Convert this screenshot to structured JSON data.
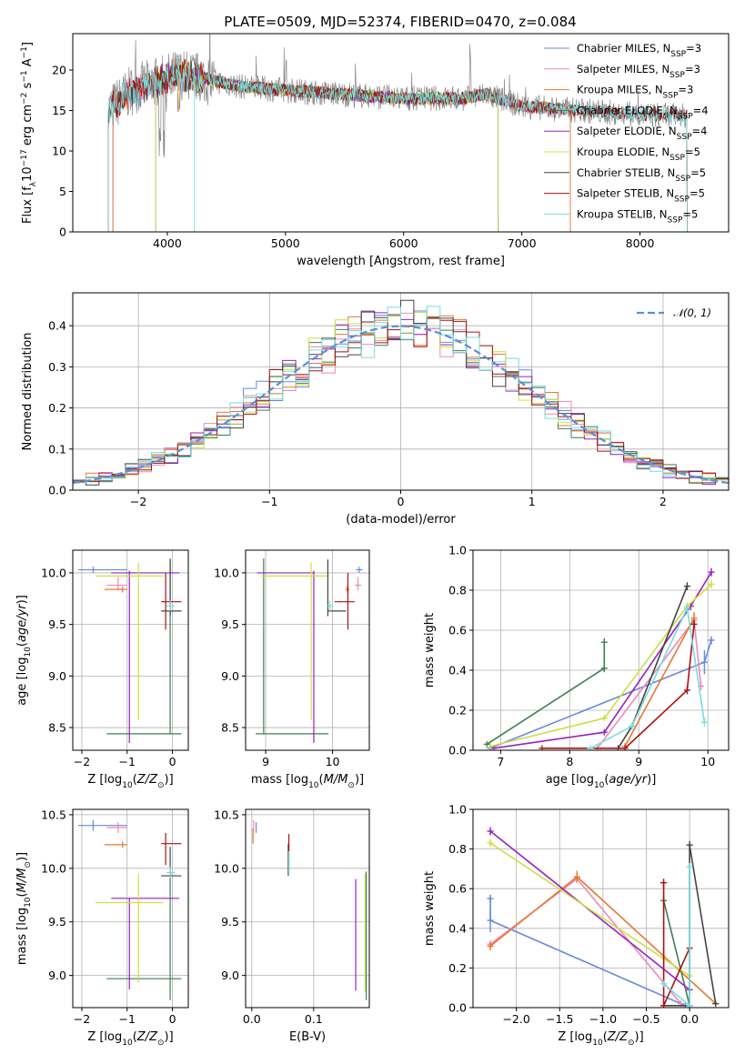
{
  "figure": {
    "title": "PLATE=0509, MJD=52374, FIBERID=0470, z=0.084"
  },
  "colors": {
    "Chabrier MILES": "#6688dd",
    "Salpeter MILES": "#ee88bb",
    "Kroupa MILES": "#e87830",
    "Chabrier ELODIE": "#3d7f55",
    "Salpeter ELODIE": "#9922bb",
    "Kroupa ELODIE": "#cce044",
    "Chabrier STELIB": "#444444",
    "Salpeter STELIB": "#aa1111",
    "Kroupa STELIB": "#77dddd",
    "observed": "#888888",
    "normal": "#5b8fd6",
    "grid": "#b0b0b0"
  },
  "chart_data": [
    {
      "id": "spectrum",
      "type": "line",
      "title": "PLATE=0509, MJD=52374, FIBERID=0470, z=0.084",
      "xlabel": "wavelength [Angstrom, rest frame]",
      "ylabel": "Flux [f_λ10^-17 erg cm^-2 s^-1 A^-1]",
      "xlim": [
        3200,
        8750
      ],
      "ylim": [
        0,
        24.5
      ],
      "xticks": [
        4000,
        5000,
        6000,
        7000,
        8000
      ],
      "yticks": [
        0,
        5,
        10,
        15,
        20
      ],
      "grid": false,
      "legend_position": "top-right",
      "legend": [
        {
          "name": "Chabrier MILES",
          "nssp": "3"
        },
        {
          "name": "Salpeter MILES",
          "nssp": "3"
        },
        {
          "name": "Kroupa MILES",
          "nssp": "3"
        },
        {
          "name": "Chabrier ELODIE",
          "nssp": "4"
        },
        {
          "name": "Salpeter ELODIE",
          "nssp": "4"
        },
        {
          "name": "Kroupa ELODIE",
          "nssp": "5"
        },
        {
          "name": "Chabrier STELIB",
          "nssp": "5"
        },
        {
          "name": "Salpeter STELIB",
          "nssp": "5"
        },
        {
          "name": "Kroupa STELIB",
          "nssp": "5"
        }
      ],
      "continuum": {
        "x": [
          3500,
          3700,
          3900,
          4100,
          4300,
          4600,
          5000,
          5500,
          6000,
          6500,
          6700,
          7000,
          7500,
          8000,
          8400
        ],
        "y": [
          15.0,
          17.5,
          18.5,
          19.5,
          19.0,
          18.0,
          17.5,
          17.0,
          16.5,
          16.5,
          17.0,
          15.5,
          15.0,
          14.5,
          14.3
        ]
      },
      "model_ranges": {
        "MILES": [
          3540,
          7410
        ],
        "ELODIE": [
          3900,
          6800
        ],
        "STELIB": [
          3500,
          8400
        ]
      }
    },
    {
      "id": "residual_histogram",
      "type": "line",
      "xlabel": "(data-model)/error",
      "ylabel": "Normed distribution",
      "xlim": [
        -2.5,
        2.5
      ],
      "ylim": [
        0,
        0.48
      ],
      "xticks": [
        -2,
        -1,
        0,
        1,
        2
      ],
      "yticks": [
        0.0,
        0.1,
        0.2,
        0.3,
        0.4
      ],
      "grid": true,
      "legend_position": "top-right",
      "reference_curve": {
        "name": "𝒩(0, 1)",
        "mean": 0,
        "sigma": 1
      },
      "bin_width": 0.1,
      "peak": 0.4
    },
    {
      "id": "age_vs_Z",
      "type": "scatter",
      "xlabel": "Z [log10(Z/Z⊙)]",
      "ylabel": "age [log10(age/yr)]",
      "xlim": [
        -2.2,
        0.35
      ],
      "ylim": [
        8.28,
        10.22
      ],
      "xticks": [
        -2,
        -1,
        0
      ],
      "yticks": [
        8.5,
        9.0,
        9.5,
        10.0
      ],
      "grid": true,
      "points": [
        {
          "model": "Chabrier MILES",
          "x": -1.75,
          "y": 10.03,
          "xerr": [
            0.33,
            0.75
          ],
          "yerr": [
            0.03,
            0.03
          ]
        },
        {
          "model": "Salpeter MILES",
          "x": -1.2,
          "y": 9.88,
          "xerr": [
            0.25,
            0.2
          ],
          "yerr": [
            0.05,
            0.08
          ]
        },
        {
          "model": "Kroupa MILES",
          "x": -1.1,
          "y": 9.84,
          "xerr": [
            0.4,
            0.1
          ],
          "yerr": [
            0.03,
            0.03
          ]
        },
        {
          "model": "Chabrier ELODIE",
          "x": -0.05,
          "y": 8.44,
          "xerr": [
            1.4,
            0.25
          ],
          "yerr": [
            0.0,
            1.7
          ]
        },
        {
          "model": "Salpeter ELODIE",
          "x": -0.95,
          "y": 10.0,
          "xerr": [
            0.4,
            1.1
          ],
          "yerr": [
            1.65,
            0.02
          ]
        },
        {
          "model": "Kroupa ELODIE",
          "x": -0.75,
          "y": 9.97,
          "xerr": [
            0.95,
            0.55
          ],
          "yerr": [
            1.4,
            0.13
          ]
        },
        {
          "model": "Chabrier STELIB",
          "x": -0.05,
          "y": 9.63,
          "xerr": [
            0.2,
            0.25
          ],
          "yerr": [
            0.05,
            0.5
          ]
        },
        {
          "model": "Salpeter STELIB",
          "x": -0.15,
          "y": 9.72,
          "xerr": [
            0.1,
            0.35
          ],
          "yerr": [
            0.27,
            0.28
          ]
        },
        {
          "model": "Kroupa STELIB",
          "x": -0.05,
          "y": 9.68,
          "xerr": [
            0.08,
            0.1
          ],
          "yerr": [
            0.05,
            0.05
          ]
        }
      ]
    },
    {
      "id": "age_vs_mass",
      "type": "scatter",
      "xlabel": "mass [log10(M/M⊙)]",
      "ylabel": "",
      "xlim": [
        8.7,
        10.55
      ],
      "ylim": [
        8.28,
        10.22
      ],
      "xticks": [
        9,
        10
      ],
      "yticks": [
        8.5,
        9.0,
        9.5,
        10.0
      ],
      "grid": true,
      "points": [
        {
          "model": "Chabrier MILES",
          "x": 10.4,
          "y": 10.03,
          "xerr": [
            0.05,
            0.05
          ],
          "yerr": [
            0.03,
            0.03
          ]
        },
        {
          "model": "Salpeter MILES",
          "x": 10.38,
          "y": 9.88,
          "xerr": [
            0.05,
            0.05
          ],
          "yerr": [
            0.05,
            0.08
          ]
        },
        {
          "model": "Kroupa MILES",
          "x": 10.22,
          "y": 9.84,
          "xerr": [
            0.03,
            0.03
          ],
          "yerr": [
            0.03,
            0.03
          ]
        },
        {
          "model": "Chabrier ELODIE",
          "x": 8.97,
          "y": 8.44,
          "xerr": [
            0.12,
            0.97
          ],
          "yerr": [
            0.0,
            1.7
          ]
        },
        {
          "model": "Salpeter ELODIE",
          "x": 9.72,
          "y": 10.0,
          "xerr": [
            0.85,
            0.0
          ],
          "yerr": [
            1.65,
            0.02
          ]
        },
        {
          "model": "Kroupa ELODIE",
          "x": 9.68,
          "y": 9.97,
          "xerr": [
            0.75,
            0.27
          ],
          "yerr": [
            1.4,
            0.13
          ]
        },
        {
          "model": "Chabrier STELIB",
          "x": 9.93,
          "y": 9.63,
          "xerr": [
            0.0,
            0.27
          ],
          "yerr": [
            0.05,
            0.5
          ]
        },
        {
          "model": "Salpeter STELIB",
          "x": 10.23,
          "y": 9.72,
          "xerr": [
            0.2,
            0.1
          ],
          "yerr": [
            0.27,
            0.28
          ]
        },
        {
          "model": "Kroupa STELIB",
          "x": 9.96,
          "y": 9.68,
          "xerr": [
            0.05,
            0.05
          ],
          "yerr": [
            0.05,
            0.05
          ]
        }
      ]
    },
    {
      "id": "mass_weight_vs_age",
      "type": "line",
      "xlabel": "age [log10(age/yr)]",
      "ylabel": "mass weight",
      "xlim": [
        6.6,
        10.3
      ],
      "ylim": [
        0,
        1.0
      ],
      "xticks": [
        7,
        8,
        9,
        10
      ],
      "yticks": [
        0.0,
        0.2,
        0.4,
        0.6,
        0.8,
        1.0
      ],
      "grid": true,
      "series": [
        {
          "model": "Chabrier MILES",
          "x": [
            6.85,
            9.95,
            10.05
          ],
          "y": [
            0.01,
            0.44,
            0.55
          ],
          "err": [
            0.01,
            0.06,
            0.02
          ]
        },
        {
          "model": "Salpeter MILES",
          "x": [
            8.4,
            9.8,
            9.9
          ],
          "y": [
            0.01,
            0.65,
            0.32
          ],
          "err": [
            0.01,
            0.02,
            0.02
          ]
        },
        {
          "model": "Kroupa MILES",
          "x": [
            8.8,
            9.8
          ],
          "y": [
            0.02,
            0.66
          ],
          "err": [
            0.01,
            0.03
          ]
        },
        {
          "model": "Chabrier ELODIE",
          "x": [
            6.8,
            8.5,
            8.5
          ],
          "y": [
            0.03,
            0.41,
            0.54
          ],
          "err": [
            0.01,
            0.02,
            0.02
          ]
        },
        {
          "model": "Salpeter ELODIE",
          "x": [
            6.9,
            8.5,
            9.75,
            10.05
          ],
          "y": [
            0.01,
            0.09,
            0.72,
            0.89
          ],
          "err": [
            0.0,
            0.01,
            0.02,
            0.02
          ]
        },
        {
          "model": "Kroupa ELODIE",
          "x": [
            6.85,
            8.5,
            9.7,
            10.05
          ],
          "y": [
            0.02,
            0.16,
            0.72,
            0.83
          ],
          "err": [
            0.01,
            0.01,
            0.02,
            0.02
          ]
        },
        {
          "model": "Chabrier STELIB",
          "x": [
            8.7,
            8.9,
            9.7
          ],
          "y": [
            0.01,
            0.12,
            0.82
          ],
          "err": [
            0.0,
            0.01,
            0.02
          ]
        },
        {
          "model": "Salpeter STELIB",
          "x": [
            7.6,
            8.8,
            9.7,
            9.8
          ],
          "y": [
            0.01,
            0.01,
            0.3,
            0.63
          ],
          "err": [
            0.0,
            0.0,
            0.02,
            0.02
          ]
        },
        {
          "model": "Kroupa STELIB",
          "x": [
            8.3,
            8.9,
            9.7,
            9.95
          ],
          "y": [
            0.01,
            0.12,
            0.71,
            0.14
          ],
          "err": [
            0.0,
            0.01,
            0.02,
            0.02
          ]
        }
      ]
    },
    {
      "id": "mass_vs_Z",
      "type": "scatter",
      "xlabel": "Z [log10(Z/Z⊙)]",
      "ylabel": "mass [log10(M/M⊙)]",
      "xlim": [
        -2.2,
        0.35
      ],
      "ylim": [
        8.7,
        10.55
      ],
      "xticks": [
        -2,
        -1,
        0
      ],
      "yticks": [
        9.0,
        9.5,
        10.0,
        10.5
      ],
      "grid": true,
      "points": [
        {
          "model": "Chabrier MILES",
          "x": -1.75,
          "y": 10.4,
          "xerr": [
            0.33,
            0.75
          ],
          "yerr": [
            0.05,
            0.05
          ]
        },
        {
          "model": "Salpeter MILES",
          "x": -1.2,
          "y": 10.38,
          "xerr": [
            0.25,
            0.2
          ],
          "yerr": [
            0.05,
            0.05
          ]
        },
        {
          "model": "Kroupa MILES",
          "x": -1.1,
          "y": 10.22,
          "xerr": [
            0.4,
            0.1
          ],
          "yerr": [
            0.03,
            0.03
          ]
        },
        {
          "model": "Chabrier ELODIE",
          "x": -0.05,
          "y": 8.97,
          "xerr": [
            1.4,
            0.25
          ],
          "yerr": [
            0.2,
            1.0
          ]
        },
        {
          "model": "Salpeter ELODIE",
          "x": -0.95,
          "y": 9.72,
          "xerr": [
            0.4,
            1.1
          ],
          "yerr": [
            0.85,
            0.0
          ]
        },
        {
          "model": "Kroupa ELODIE",
          "x": -0.75,
          "y": 9.68,
          "xerr": [
            0.95,
            0.55
          ],
          "yerr": [
            0.75,
            0.27
          ]
        },
        {
          "model": "Chabrier STELIB",
          "x": -0.05,
          "y": 9.93,
          "xerr": [
            0.2,
            0.25
          ],
          "yerr": [
            0.0,
            0.27
          ]
        },
        {
          "model": "Salpeter STELIB",
          "x": -0.15,
          "y": 10.23,
          "xerr": [
            0.1,
            0.35
          ],
          "yerr": [
            0.2,
            0.1
          ]
        },
        {
          "model": "Kroupa STELIB",
          "x": -0.05,
          "y": 9.96,
          "xerr": [
            0.08,
            0.1
          ],
          "yerr": [
            0.05,
            0.05
          ]
        }
      ]
    },
    {
      "id": "mass_vs_EBV",
      "type": "scatter",
      "xlabel": "E(B-V)",
      "ylabel": "",
      "xlim": [
        -0.01,
        0.19
      ],
      "ylim": [
        8.7,
        10.55
      ],
      "xticks": [
        0.0,
        0.1
      ],
      "yticks": [
        9.0,
        9.5,
        10.0,
        10.5
      ],
      "grid": true,
      "points": [
        {
          "model": "Chabrier MILES",
          "x": 0.007,
          "y": 10.38,
          "yerr": [
            0.05,
            0.05
          ]
        },
        {
          "model": "Salpeter MILES",
          "x": 0.003,
          "y": 10.4,
          "yerr": [
            0.05,
            0.05
          ]
        },
        {
          "model": "Kroupa MILES",
          "x": 0.002,
          "y": 10.3,
          "yerr": [
            0.07,
            0.07
          ]
        },
        {
          "model": "Chabrier ELODIE",
          "x": 0.185,
          "y": 9.37,
          "yerr": [
            0.6,
            0.6
          ]
        },
        {
          "model": "Salpeter ELODIE",
          "x": 0.168,
          "y": 9.38,
          "yerr": [
            0.52,
            0.52
          ]
        },
        {
          "model": "Kroupa ELODIE",
          "x": 0.183,
          "y": 9.4,
          "yerr": [
            0.55,
            0.55
          ]
        },
        {
          "model": "Chabrier STELIB",
          "x": 0.059,
          "y": 10.08,
          "yerr": [
            0.15,
            0.15
          ]
        },
        {
          "model": "Salpeter STELIB",
          "x": 0.06,
          "y": 10.15,
          "yerr": [
            0.17,
            0.17
          ]
        },
        {
          "model": "Kroupa STELIB",
          "x": 0.06,
          "y": 10.06,
          "yerr": [
            0.1,
            0.1
          ]
        }
      ]
    },
    {
      "id": "mass_weight_vs_Z",
      "type": "line",
      "xlabel": "Z [log10(Z/Z⊙)]",
      "ylabel": "mass weight",
      "xlim": [
        -2.5,
        0.45
      ],
      "ylim": [
        0,
        1.0
      ],
      "xticks": [
        -2.0,
        -1.5,
        -1.0,
        -0.5,
        0.0
      ],
      "yticks": [
        0.0,
        0.2,
        0.4,
        0.6,
        0.8,
        1.0
      ],
      "grid": true,
      "series": [
        {
          "model": "Chabrier MILES",
          "x": [
            -2.3,
            -2.3,
            -0.05,
            0.0
          ],
          "y": [
            0.55,
            0.44,
            0.01,
            0.01
          ],
          "err": [
            0.02,
            0.06,
            0.01,
            0.01
          ]
        },
        {
          "model": "Salpeter MILES",
          "x": [
            -2.3,
            -1.3,
            -0.1
          ],
          "y": [
            0.32,
            0.65,
            0.02
          ],
          "err": [
            0.02,
            0.02,
            0.01
          ]
        },
        {
          "model": "Kroupa MILES",
          "x": [
            -2.3,
            -1.3,
            0.3
          ],
          "y": [
            0.31,
            0.66,
            0.02
          ],
          "err": [
            0.02,
            0.03,
            0.01
          ]
        },
        {
          "model": "Chabrier ELODIE",
          "x": [
            -0.3,
            0.0
          ],
          "y": [
            0.54,
            0.01
          ],
          "err": [
            0.02,
            0.01
          ]
        },
        {
          "model": "Salpeter ELODIE",
          "x": [
            -2.3,
            0.0
          ],
          "y": [
            0.89,
            0.09
          ],
          "err": [
            0.02,
            0.01
          ]
        },
        {
          "model": "Kroupa ELODIE",
          "x": [
            -2.3,
            0.0
          ],
          "y": [
            0.83,
            0.16
          ],
          "err": [
            0.02,
            0.01
          ]
        },
        {
          "model": "Chabrier STELIB",
          "x": [
            -0.3,
            0.0,
            0.0,
            0.3
          ],
          "y": [
            0.01,
            0.01,
            0.82,
            0.02
          ],
          "err": [
            0.0,
            0.0,
            0.02,
            0.01
          ]
        },
        {
          "model": "Salpeter STELIB",
          "x": [
            -0.3,
            -0.3,
            0.0
          ],
          "y": [
            0.63,
            0.01,
            0.3
          ],
          "err": [
            0.02,
            0.0,
            0.02
          ]
        },
        {
          "model": "Kroupa STELIB",
          "x": [
            -0.3,
            0.0,
            0.0
          ],
          "y": [
            0.12,
            0.01,
            0.71
          ],
          "err": [
            0.01,
            0.0,
            0.02
          ]
        }
      ]
    }
  ]
}
